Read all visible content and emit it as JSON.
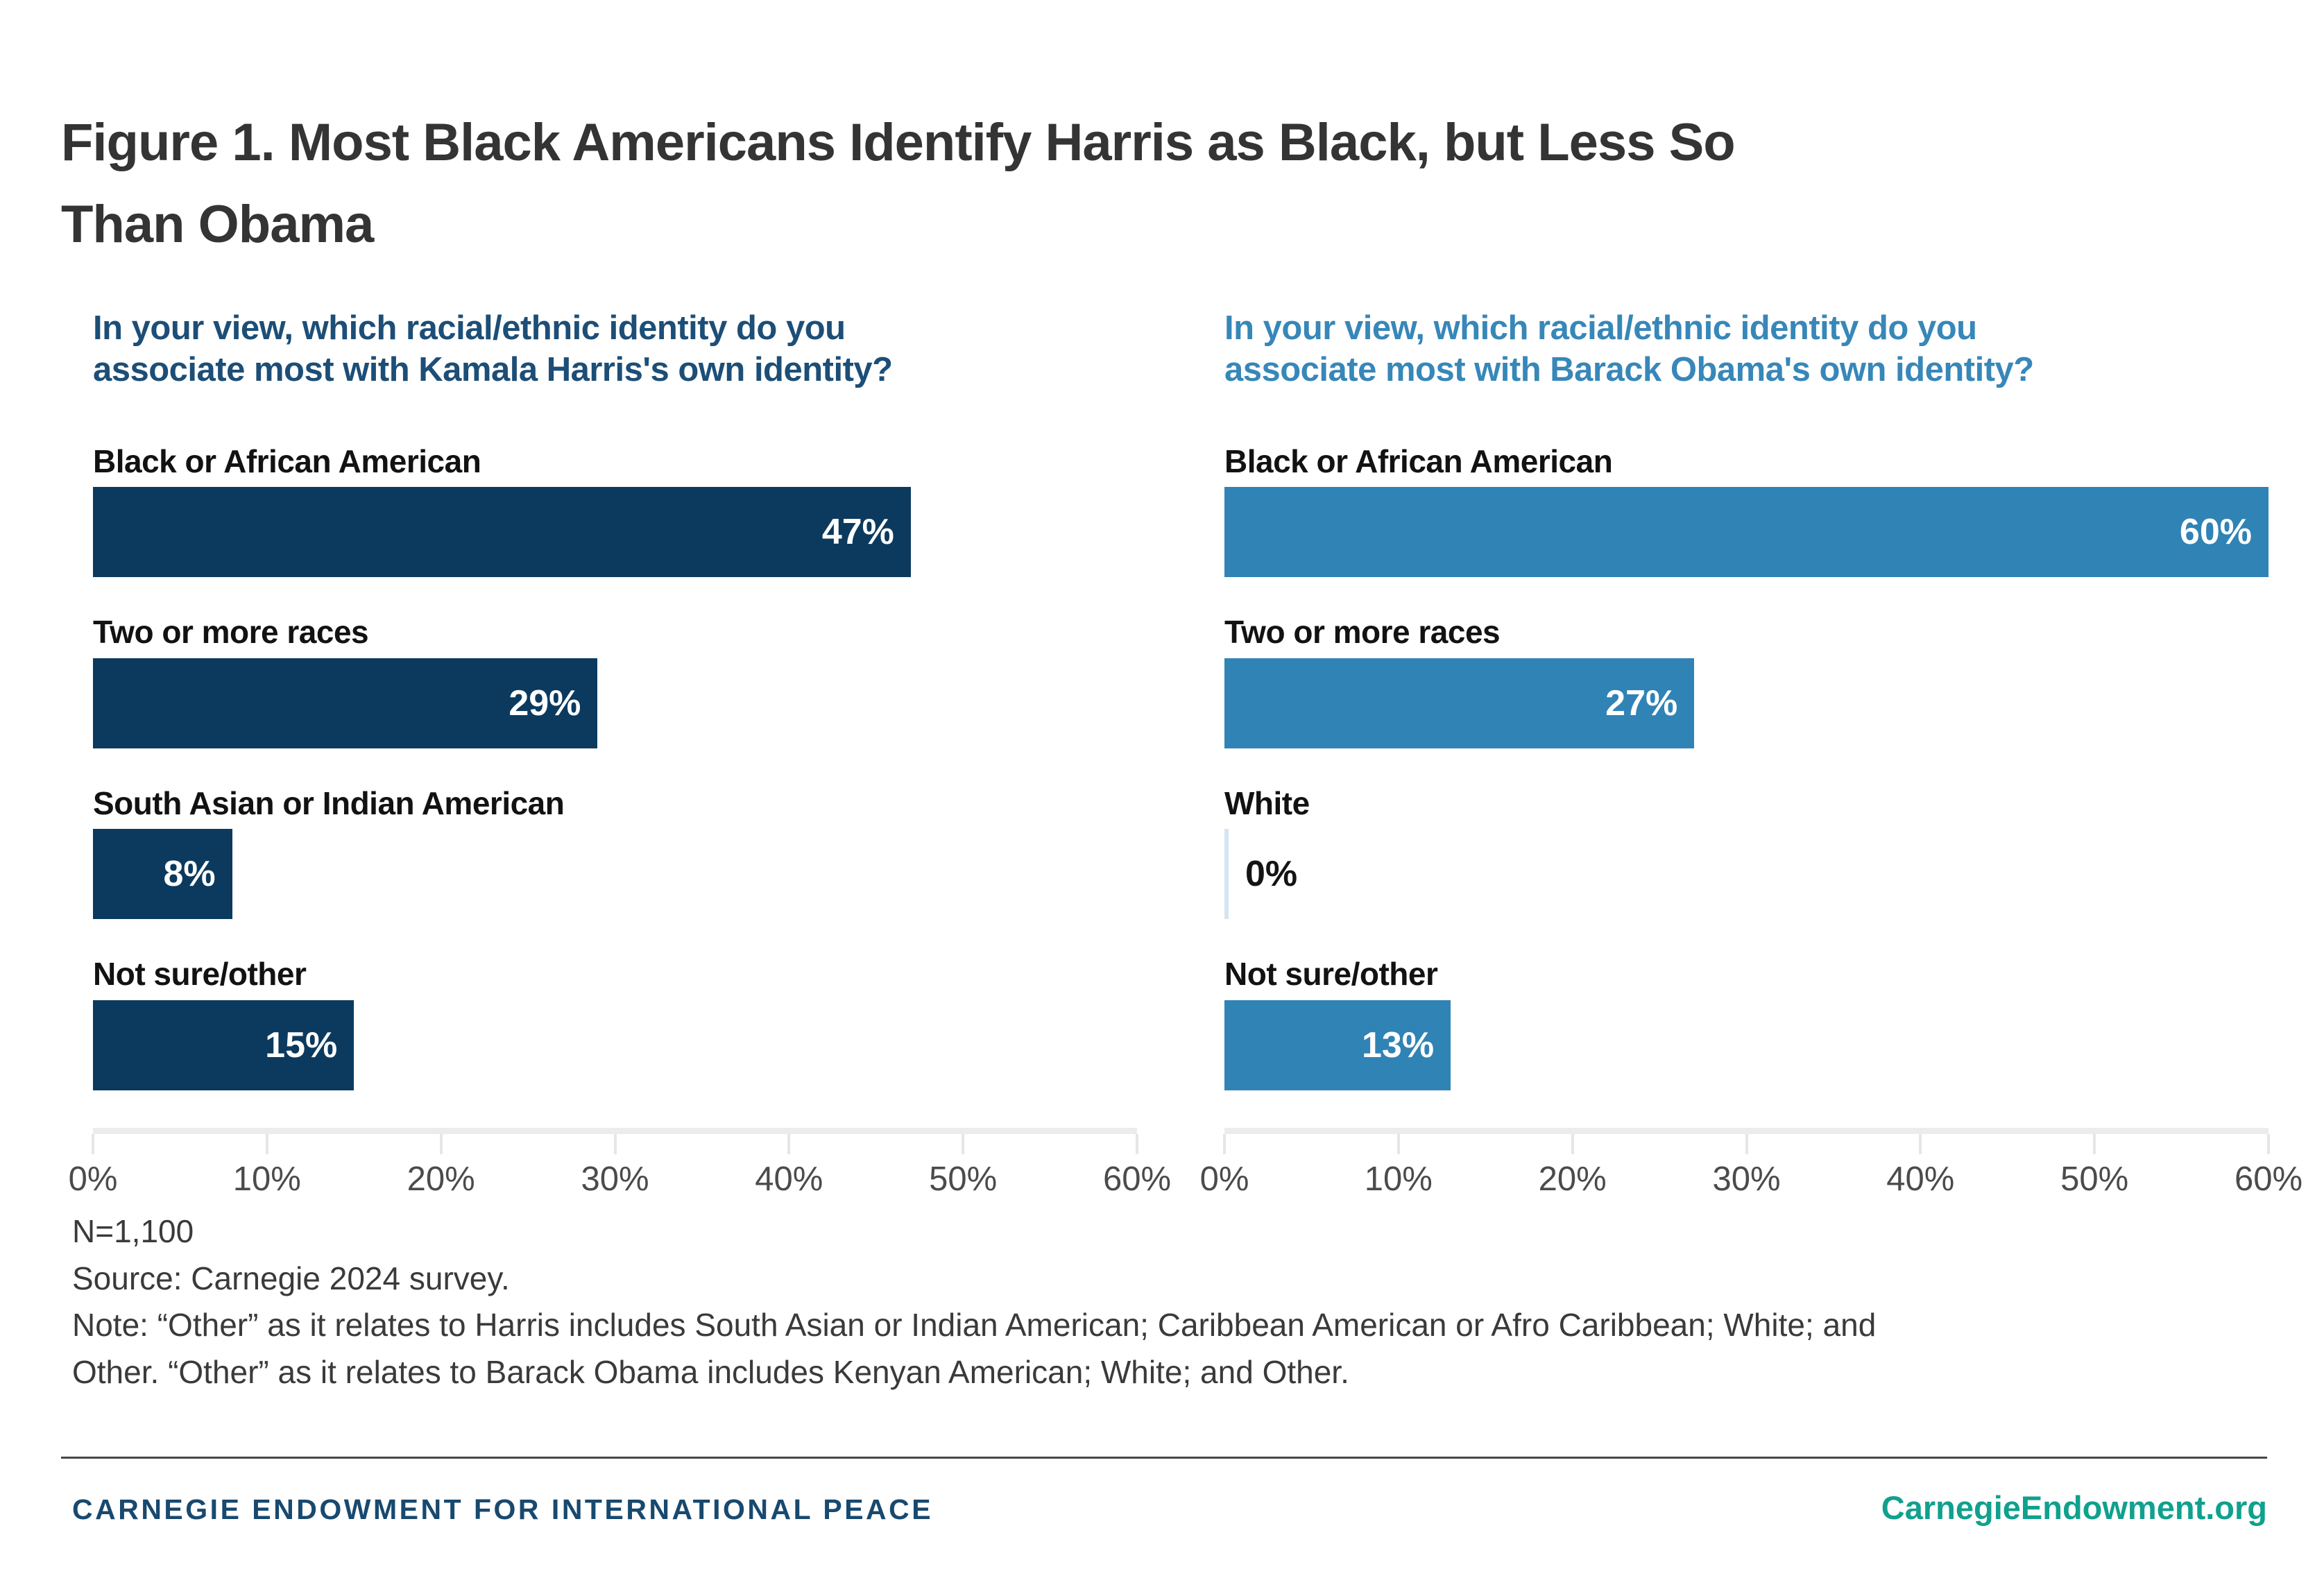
{
  "title": {
    "line1": "Figure 1. Most Black Americans Identify Harris as Black, but Less So",
    "line2": "Than Obama"
  },
  "colors": {
    "harris_bar": "#0b3a5e",
    "obama_bar": "#3083b5",
    "harris_question": "#1c4e77",
    "obama_question": "#3787b9",
    "zero_bar_sliver": "#d5e5f2",
    "title_text": "#343434",
    "footer_navy": "#18496f",
    "footer_teal": "#10a08e",
    "axis_gray": "#ececec"
  },
  "axis": {
    "max": 60,
    "ticks": [
      "0%",
      "10%",
      "20%",
      "30%",
      "40%",
      "50%",
      "60%"
    ]
  },
  "charts": [
    {
      "id": "harris",
      "question_lines": [
        "In your view, which racial/ethnic identity do you",
        "associate most with Kamala Harris's own identity?"
      ],
      "bar_color": "#0b3a5e",
      "question_color": "#1c4e77",
      "bars": [
        {
          "label": "Black or African American",
          "value": 47,
          "display": "47%"
        },
        {
          "label": "Two or more races",
          "value": 29,
          "display": "29%"
        },
        {
          "label": "South Asian or Indian American",
          "value": 8,
          "display": "8%"
        },
        {
          "label": "Not sure/other",
          "value": 15,
          "display": "15%"
        }
      ]
    },
    {
      "id": "obama",
      "question_lines": [
        "In your view, which racial/ethnic identity do you",
        "associate most with Barack Obama's own identity?"
      ],
      "bar_color": "#3083b5",
      "question_color": "#3787b9",
      "bars": [
        {
          "label": "Black or African American",
          "value": 60,
          "display": "60%"
        },
        {
          "label": "Two or more races",
          "value": 27,
          "display": "27%"
        },
        {
          "label": "White",
          "value": 0,
          "display": "0%"
        },
        {
          "label": "Not sure/other",
          "value": 13,
          "display": "13%"
        }
      ]
    }
  ],
  "notes": {
    "sample_size": "N=1,100",
    "source": "Source: Carnegie 2024 survey.",
    "note_line1": "Note: “Other” as it relates to Harris includes South Asian or Indian American; Caribbean American or Afro Caribbean; White; and",
    "note_line2": "Other. “Other” as it relates to Barack Obama includes Kenyan American; White; and Other."
  },
  "footer": {
    "org": "CARNEGIE ENDOWMENT FOR INTERNATIONAL PEACE",
    "site": "CarnegieEndowment.org"
  },
  "chart_data": [
    {
      "type": "bar",
      "orientation": "horizontal",
      "title": "In your view, which racial/ethnic identity do you associate most with Kamala Harris's own identity?",
      "categories": [
        "Black or African American",
        "Two or more races",
        "South Asian or Indian American",
        "Not sure/other"
      ],
      "values": [
        47,
        29,
        8,
        15
      ],
      "unit": "%",
      "xlabel": "",
      "ylabel": "",
      "xlim": [
        0,
        60
      ],
      "x_ticks": [
        0,
        10,
        20,
        30,
        40,
        50,
        60
      ],
      "grid": false,
      "legend": "none",
      "bar_color": "#0b3a5e",
      "value_labels": "inside-end, white"
    },
    {
      "type": "bar",
      "orientation": "horizontal",
      "title": "In your view, which racial/ethnic identity do you associate most with Barack Obama's own identity?",
      "categories": [
        "Black or African American",
        "Two or more races",
        "White",
        "Not sure/other"
      ],
      "values": [
        60,
        27,
        0,
        13
      ],
      "unit": "%",
      "xlabel": "",
      "ylabel": "",
      "xlim": [
        0,
        60
      ],
      "x_ticks": [
        0,
        10,
        20,
        30,
        40,
        50,
        60
      ],
      "grid": false,
      "legend": "none",
      "bar_color": "#3083b5",
      "value_labels": "inside-end, white (0% shown in black outside bar)"
    }
  ]
}
